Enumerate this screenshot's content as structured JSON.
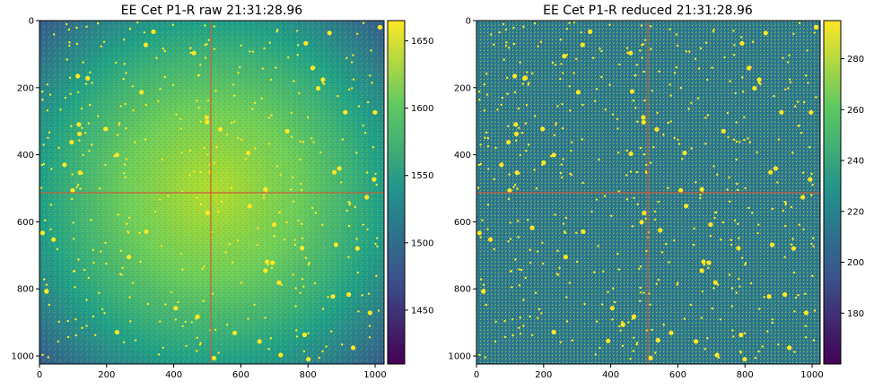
{
  "panels": [
    {
      "title": "EE Cet P1-R raw 21:31:28.96",
      "image": "raw CCD frame",
      "x_ticks": [
        "0",
        "200",
        "400",
        "600",
        "800",
        "1000"
      ],
      "y_ticks": [
        "0",
        "200",
        "400",
        "600",
        "800",
        "1000"
      ],
      "colorbar_ticks": [
        "1650",
        "1600",
        "1550",
        "1500",
        "1450"
      ],
      "colorbar_range": [
        1410,
        1665
      ]
    },
    {
      "title": "EE Cet P1-R reduced 21:31:28.96",
      "image": "reduced CCD frame",
      "x_ticks": [
        "0",
        "200",
        "400",
        "600",
        "800",
        "1000"
      ],
      "y_ticks": [
        "0",
        "200",
        "400",
        "600",
        "800",
        "1000"
      ],
      "colorbar_ticks": [
        "280",
        "260",
        "240",
        "220",
        "200",
        "180"
      ],
      "colorbar_range": [
        160,
        295
      ]
    }
  ],
  "colormap": [
    "#440154",
    "#3b528b",
    "#21918c",
    "#5ec962",
    "#fde725"
  ],
  "crosshair_color": "#cc5a3c",
  "image_range": [
    0,
    1023
  ]
}
